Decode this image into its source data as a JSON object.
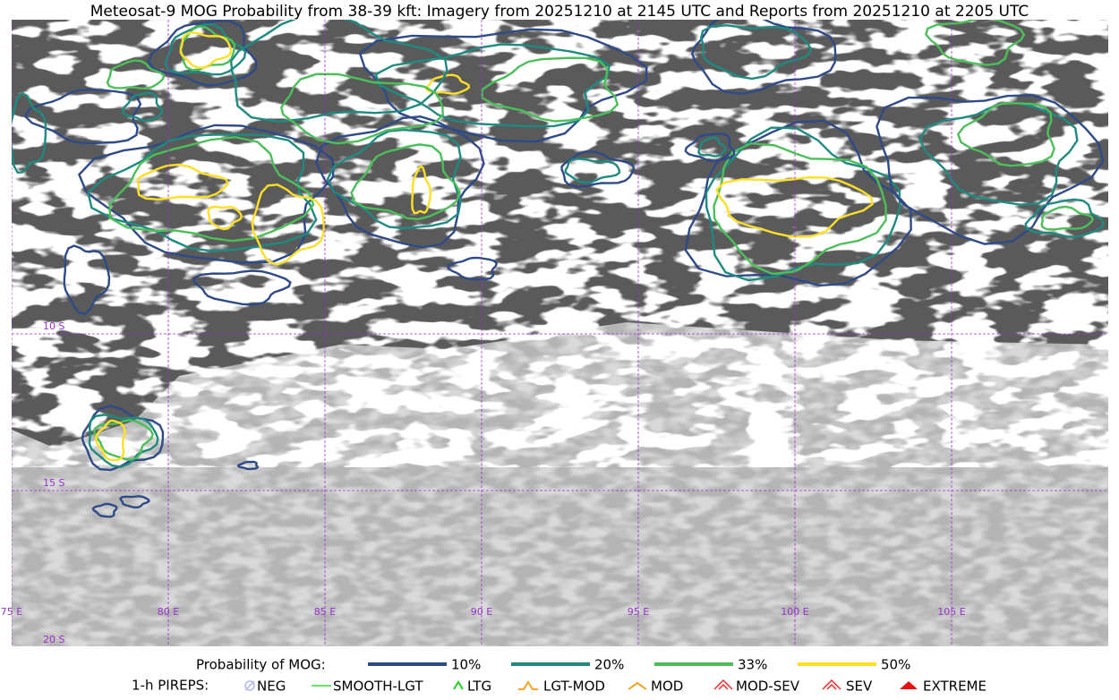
{
  "title": "Meteosat-9 MOG Probability from 38-39 kft: Imagery from 20251210 at 2145 UTC and Reports from 20251210 at 2205 UTC",
  "map": {
    "lon_labels": [
      "75 E",
      "80 E",
      "85 E",
      "90 E",
      "95 E",
      "100 E",
      "105 E"
    ],
    "lat_labels": [
      "10 S",
      "15 S",
      "20 S"
    ]
  },
  "legend": {
    "probability": {
      "label": "Probability of MOG:",
      "items": [
        {
          "label": "10%",
          "color": "#2e4a87"
        },
        {
          "label": "20%",
          "color": "#1f8a80"
        },
        {
          "label": "33%",
          "color": "#4cbf5a"
        },
        {
          "label": "50%",
          "color": "#fde025"
        }
      ]
    },
    "pireps": {
      "label": "1-h PIREPS:",
      "items": [
        {
          "label": "NEG",
          "color": "#b0b8f0"
        },
        {
          "label": "SMOOTH-LGT",
          "color": "#33dd33"
        },
        {
          "label": "LTG",
          "color": "#22cc22"
        },
        {
          "label": "LGT-MOD",
          "color": "#f5a623"
        },
        {
          "label": "MOD",
          "color": "#f5a623"
        },
        {
          "label": "MOD-SEV",
          "color": "#e83030"
        },
        {
          "label": "SEV",
          "color": "#e83030"
        },
        {
          "label": "EXTREME",
          "color": "#e81010"
        }
      ]
    }
  }
}
